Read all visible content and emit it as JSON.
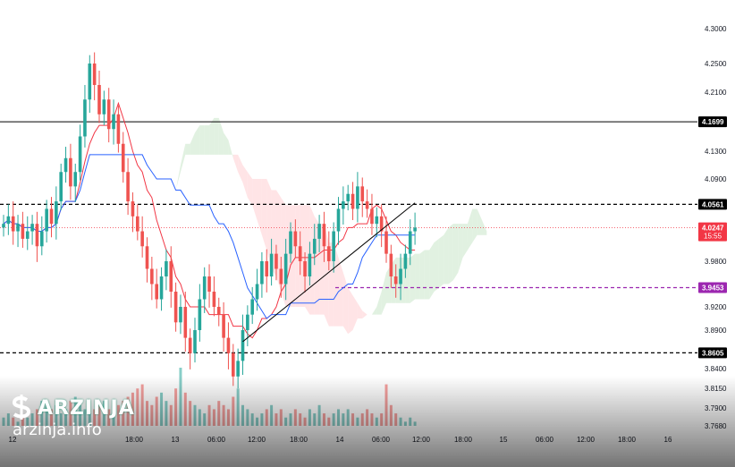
{
  "chart_data": {
    "type": "candlestick",
    "price_scale": {
      "ticks": [
        "4.3000",
        "4.2500",
        "4.2100",
        "4.1300",
        "4.0900",
        "3.9800",
        "3.9200",
        "3.8900",
        "3.8400",
        "3.8150",
        "3.7900",
        "3.7680"
      ],
      "tick_values": [
        4.3,
        4.25,
        4.21,
        4.13,
        4.09,
        3.98,
        3.92,
        3.89,
        3.84,
        3.815,
        3.79,
        3.768
      ]
    },
    "time_labels": [
      "12",
      "18:00",
      "13",
      "06:00",
      "12:00",
      "18:00",
      "14",
      "06:00",
      "12:00",
      "18:00",
      "15",
      "06:00",
      "12:00",
      "18:00",
      "16"
    ],
    "horizontal_levels": [
      {
        "label": "4.1699",
        "value": 4.1699,
        "style": "solid",
        "color": "#000000"
      },
      {
        "label": "4.0561",
        "value": 4.0561,
        "style": "dashed",
        "color": "#000000"
      },
      {
        "label": "3.9453",
        "value": 3.9453,
        "style": "dashed",
        "color": "#9c27b0"
      },
      {
        "label": "3.8605",
        "value": 3.8605,
        "style": "dashed",
        "color": "#000000"
      }
    ],
    "current_price": {
      "label": "4.0247",
      "countdown": "15:55",
      "value": 4.0247,
      "color": "#f23645"
    },
    "trendline": {
      "from": {
        "bar": 50,
        "price": 3.875
      },
      "to": {
        "bar": 86,
        "price": 4.058
      }
    },
    "colors": {
      "up": "#26a69a",
      "down": "#ef5350",
      "tenkan": "#2962ff",
      "kijun": "#f23645",
      "cloud_up": "#c8e6c9",
      "cloud_down": "#ffcdd2"
    },
    "ohlc_close_series": [
      4.03,
      4.04,
      4.02,
      4.03,
      4.01,
      4.02,
      4.03,
      4.0,
      4.02,
      4.05,
      4.03,
      4.06,
      4.1,
      4.12,
      4.08,
      4.1,
      4.15,
      4.2,
      4.25,
      4.22,
      4.18,
      4.2,
      4.16,
      4.18,
      4.14,
      4.1,
      4.06,
      4.04,
      4.02,
      4.0,
      3.97,
      3.95,
      3.93,
      3.96,
      3.98,
      3.94,
      3.9,
      3.92,
      3.88,
      3.86,
      3.89,
      3.93,
      3.96,
      3.94,
      3.92,
      3.91,
      3.88,
      3.86,
      3.83,
      3.85,
      3.89,
      3.91,
      3.93,
      3.95,
      3.98,
      3.96,
      3.99,
      3.97,
      3.95,
      3.99,
      4.02,
      4.0,
      3.98,
      3.96,
      3.99,
      4.01,
      4.03,
      4.0,
      3.98,
      4.02,
      4.05,
      4.06,
      4.07,
      4.05,
      4.08,
      4.06,
      4.05,
      4.03,
      4.04,
      4.02,
      3.99,
      3.96,
      3.95,
      3.97,
      3.99,
      4.02,
      4.025
    ],
    "volume": [
      2,
      3,
      2,
      1,
      2,
      2,
      3,
      4,
      6,
      5,
      4,
      5,
      3,
      4,
      6,
      7,
      5,
      4,
      3,
      4,
      5,
      6,
      4,
      3,
      5,
      6,
      7,
      8,
      9,
      10,
      6,
      5,
      7,
      8,
      6,
      5,
      9,
      14,
      8,
      6,
      5,
      4,
      3,
      5,
      4,
      6,
      5,
      4,
      7,
      9,
      5,
      4,
      3,
      2,
      3,
      4,
      5,
      3,
      4,
      2,
      3,
      4,
      3,
      2,
      4,
      3,
      5,
      3,
      2,
      3,
      4,
      3,
      4,
      3,
      2,
      3,
      4,
      3,
      2,
      3,
      10,
      5,
      3,
      2,
      1,
      2,
      1
    ]
  },
  "watermark": {
    "brand": "ARZINJA",
    "url": "arzinja.info"
  }
}
